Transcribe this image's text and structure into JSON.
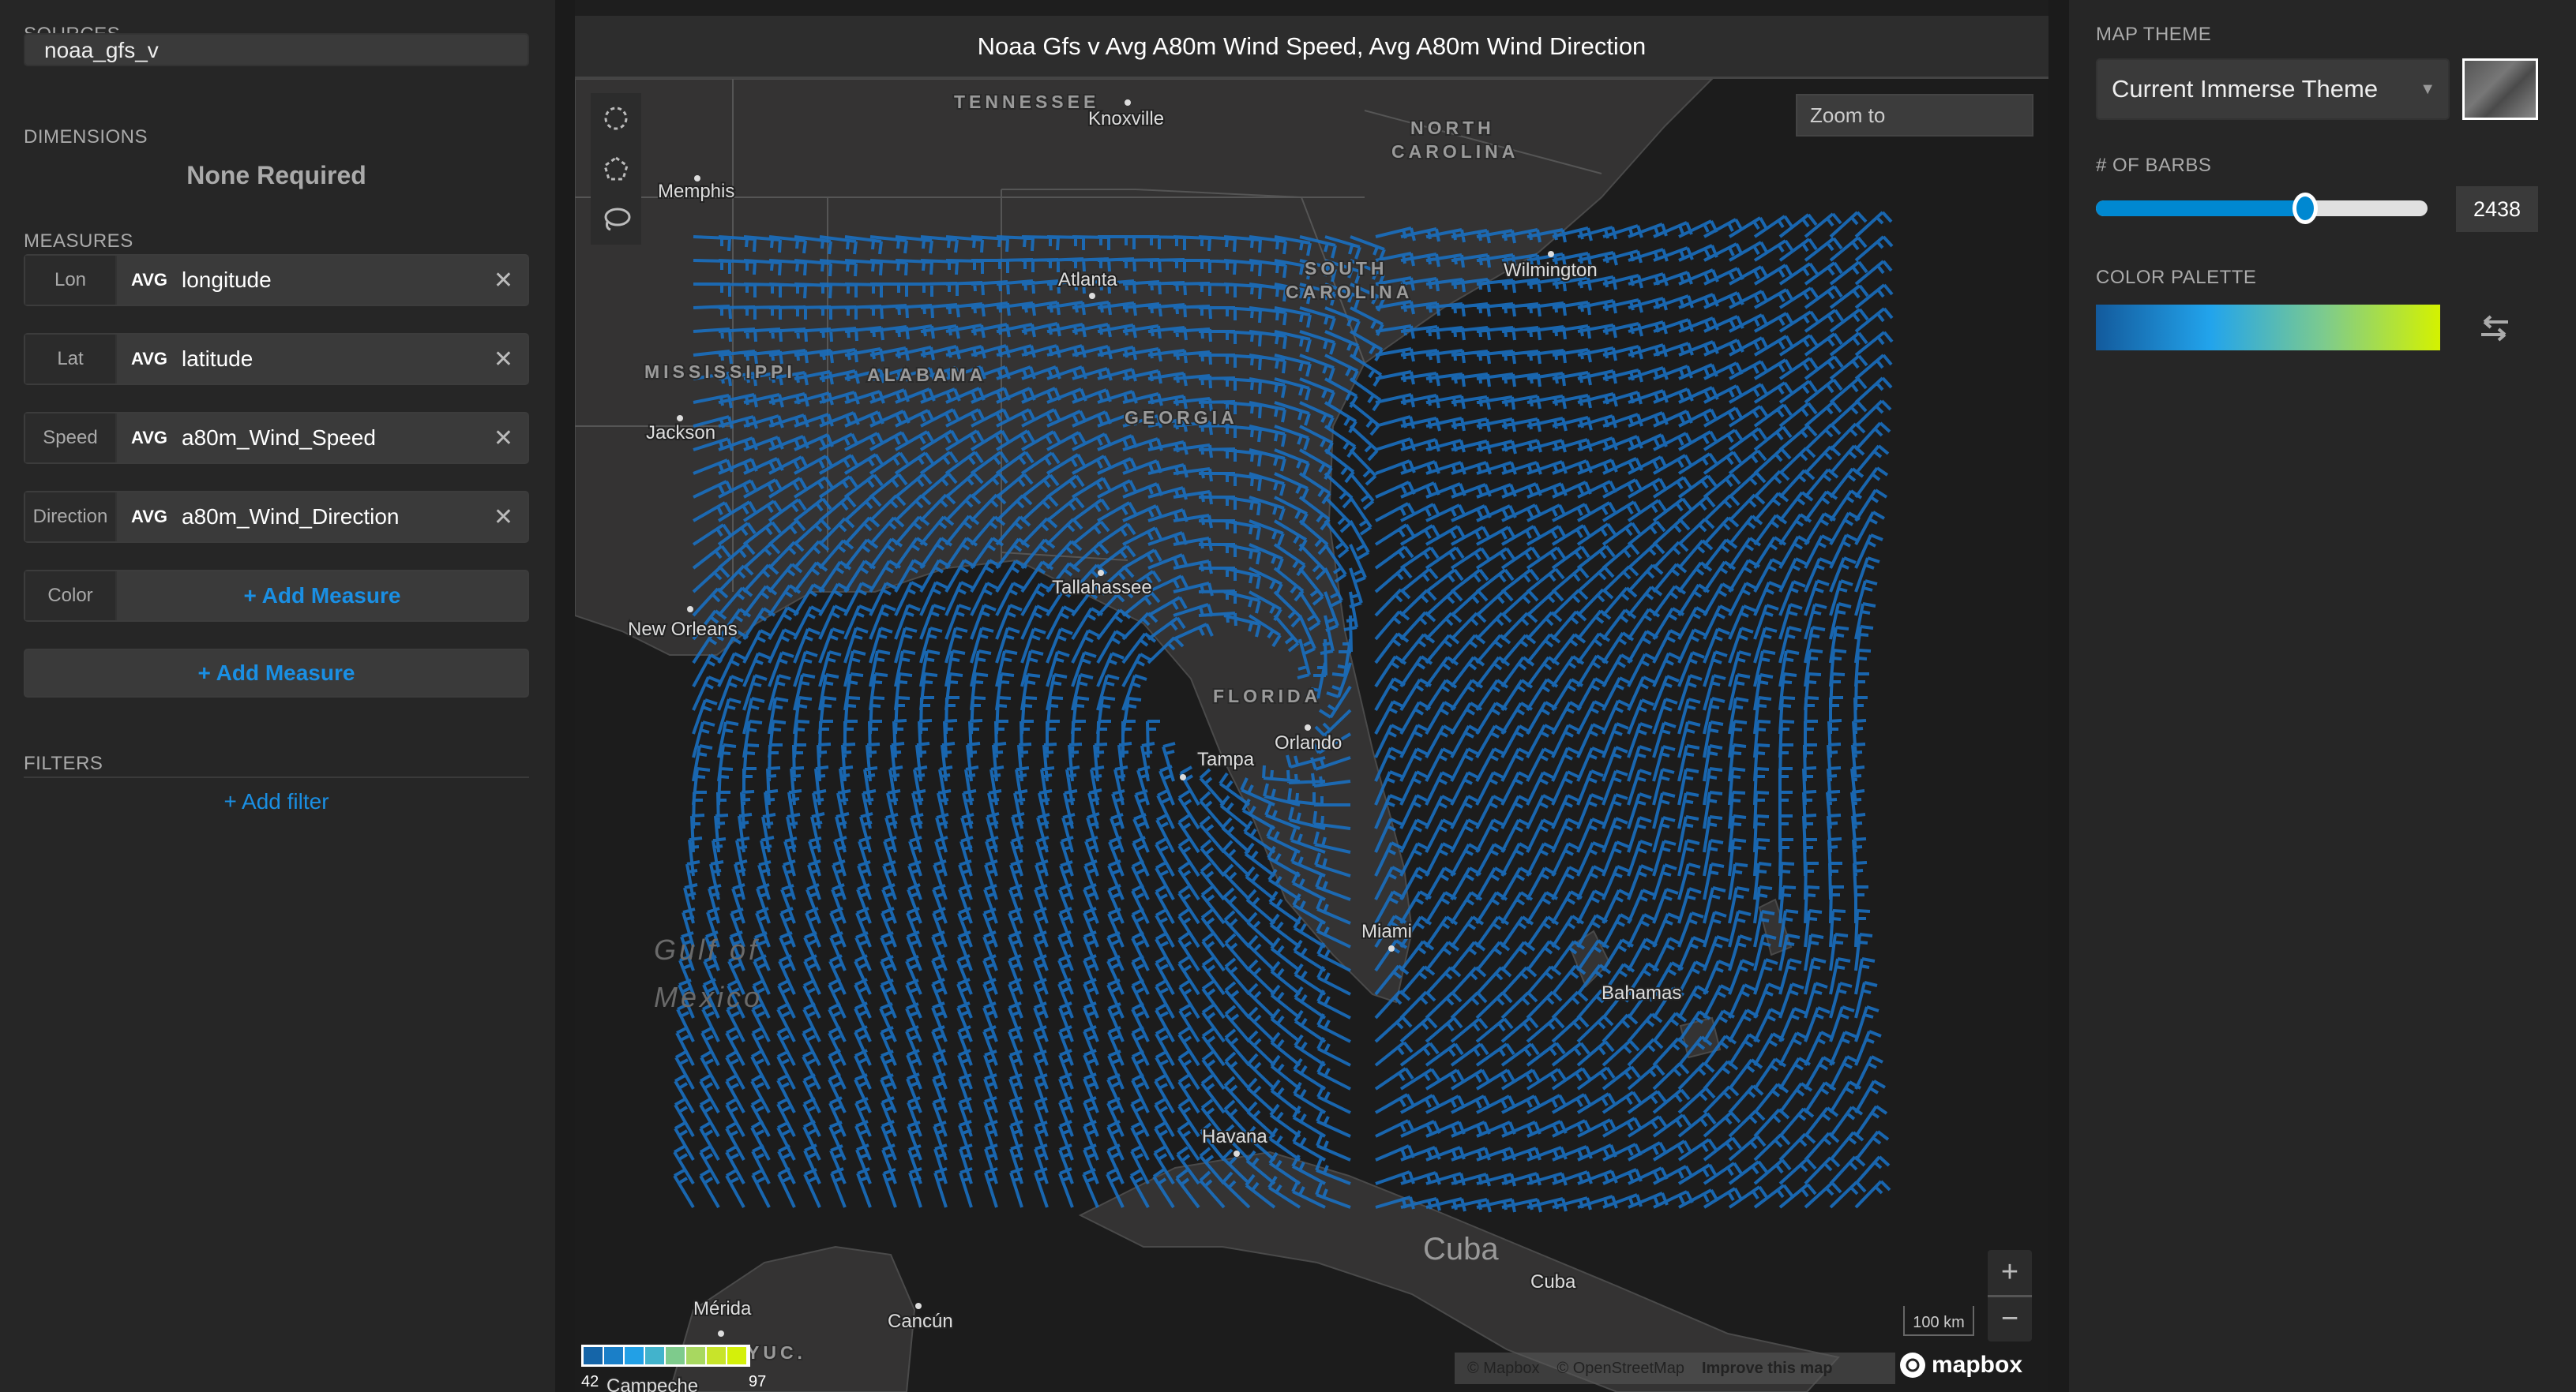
{
  "left_panel": {
    "sources_label": "SOURCES",
    "source_value": "noaa_gfs_v",
    "dimensions_label": "DIMENSIONS",
    "dimensions_value": "None Required",
    "measures_label": "MEASURES",
    "measures": [
      {
        "role": "Lon",
        "agg": "AVG",
        "field": "longitude"
      },
      {
        "role": "Lat",
        "agg": "AVG",
        "field": "latitude"
      },
      {
        "role": "Speed",
        "agg": "AVG",
        "field": "a80m_Wind_Speed"
      },
      {
        "role": "Direction",
        "agg": "AVG",
        "field": "a80m_Wind_Direction"
      }
    ],
    "color_role": "Color",
    "add_measure": "+ Add Measure",
    "filters_label": "FILTERS",
    "add_filter": "+ Add filter"
  },
  "map": {
    "title": "Noaa Gfs v Avg A80m Wind Speed, Avg A80m Wind Direction",
    "zoom_to": "Zoom to",
    "tools": [
      "circle-select-icon",
      "polygon-select-icon",
      "lasso-select-icon"
    ],
    "labels": {
      "tennessee": "TENNESSEE",
      "knoxville": "Knoxville",
      "north": "NORTH",
      "carolina": "CAROLINA",
      "memphis": "Memphis",
      "atlanta": "Atlanta",
      "south": "SOUTH",
      "s_carolina": "CAROLINA",
      "wilmington": "Wilmington",
      "mississippi": "MISSISSIPPI",
      "alabama": "ALABAMA",
      "georgia": "GEORGIA",
      "jackson": "Jackson",
      "tallahassee": "Tallahassee",
      "new_orleans": "New Orleans",
      "florida": "FLORIDA",
      "orlando": "Orlando",
      "tampa": "Tampa",
      "gulf": "Gulf of",
      "mexico": "Mexico",
      "miami": "Miami",
      "bahamas": "Bahamas",
      "havana": "Havana",
      "cuba_big": "Cuba",
      "cuba_small": "Cuba",
      "merida": "Mérida",
      "cancun": "Cancún",
      "yuc": "YUC.",
      "campeche": "Campeche"
    },
    "legend": {
      "min": "42",
      "max": "97",
      "colors": [
        "#1565a8",
        "#1a7fc8",
        "#22a0e6",
        "#42b3cc",
        "#7ecb8c",
        "#a8d860",
        "#c8e42a",
        "#d4f00a"
      ]
    },
    "barb_color": "#1a6fc0",
    "scale": "100 km",
    "zoom_in": "+",
    "zoom_out": "−",
    "attribution": {
      "mapbox": "© Mapbox",
      "osm": "© OpenStreetMap",
      "improve": "Improve this map"
    },
    "logo": "mapbox"
  },
  "right_panel": {
    "map_theme_label": "MAP THEME",
    "map_theme_value": "Current Immerse Theme",
    "barbs_label": "# OF BARBS",
    "barbs_value": "2438",
    "barbs_slider_fraction": 0.63,
    "palette_label": "COLOR PALETTE",
    "palette_colors": [
      "#135a9c",
      "#22a4ec",
      "#7ecb8c",
      "#d4f200"
    ]
  }
}
